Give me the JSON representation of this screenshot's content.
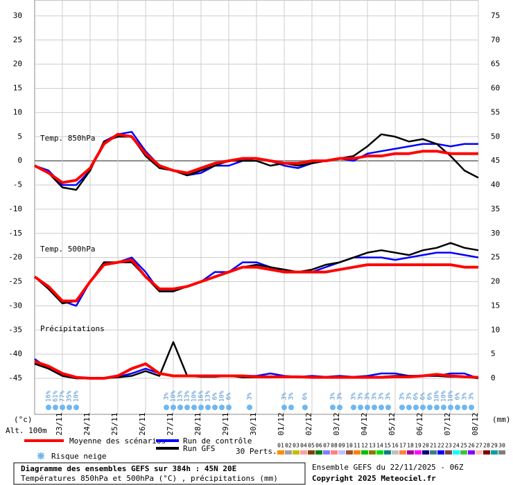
{
  "chart_data": {
    "type": "line",
    "annotations": [
      "Temp. 850hPa",
      "Temp. 500hPa",
      "Précipitations"
    ],
    "y_label": "(°c)",
    "altitude": "Alt. 100m",
    "y2_label": "(mm)",
    "xlim": [
      0,
      384
    ],
    "xticks": [
      {
        "value": 24,
        "label": "23/11"
      },
      {
        "value": 48,
        "label": "24/11"
      },
      {
        "value": 72,
        "label": "25/11"
      },
      {
        "value": 96,
        "label": "26/11"
      },
      {
        "value": 120,
        "label": "27/11"
      },
      {
        "value": 144,
        "label": "28/11"
      },
      {
        "value": 168,
        "label": "29/11"
      },
      {
        "value": 192,
        "label": "30/11"
      },
      {
        "value": 216,
        "label": "01/12"
      },
      {
        "value": 240,
        "label": "02/12"
      },
      {
        "value": 264,
        "label": "03/12"
      },
      {
        "value": 288,
        "label": "04/12"
      },
      {
        "value": 312,
        "label": "05/12"
      },
      {
        "value": 336,
        "label": "06/12"
      },
      {
        "value": 360,
        "label": "07/12"
      },
      {
        "value": 384,
        "label": "08/12"
      }
    ],
    "ylim": [
      -45,
      33
    ],
    "yticks": [
      -45,
      -40,
      -35,
      -30,
      -25,
      -20,
      -15,
      -10,
      -5,
      0,
      5,
      10,
      15,
      20,
      25,
      30
    ],
    "y2lim": [
      0,
      78
    ],
    "y2ticks": [
      0,
      5,
      10,
      15,
      20,
      25,
      30,
      35,
      40,
      45,
      50,
      55,
      60,
      65,
      70,
      75
    ],
    "x": [
      0,
      12,
      24,
      36,
      48,
      60,
      72,
      84,
      96,
      108,
      120,
      132,
      144,
      156,
      168,
      180,
      192,
      204,
      216,
      228,
      240,
      252,
      264,
      276,
      288,
      300,
      312,
      324,
      336,
      348,
      360,
      372,
      384
    ],
    "series": [
      {
        "name": "Run de contrôle",
        "color": "#0000ff",
        "t850": [
          -1,
          -2,
          -5,
          -5,
          -2,
          4,
          5.5,
          6,
          2,
          -1,
          -2,
          -3,
          -2.5,
          -1,
          -1,
          0,
          0.5,
          0,
          -1,
          -1.5,
          -0.5,
          0,
          0.5,
          0,
          1.5,
          2,
          2.5,
          3,
          3.5,
          3.5,
          3,
          3.5,
          3.5
        ],
        "t500": [
          -24,
          -26,
          -29,
          -30,
          -25,
          -21,
          -21,
          -20,
          -23,
          -27,
          -27,
          -26,
          -25,
          -23,
          -23,
          -21,
          -21,
          -22,
          -23,
          -23,
          -23,
          -22,
          -21,
          -20,
          -20,
          -20,
          -20.5,
          -20,
          -19.5,
          -19,
          -19,
          -19.5,
          -20
        ],
        "precip": [
          4,
          2,
          0.5,
          0,
          0,
          0,
          0.3,
          1,
          2,
          1,
          0.5,
          0.5,
          0.5,
          0.5,
          0.5,
          0.5,
          0.5,
          1,
          0.5,
          0.3,
          0.5,
          0.3,
          0.5,
          0.3,
          0.5,
          1,
          1,
          0.5,
          0.5,
          0.5,
          1,
          1,
          0
        ]
      },
      {
        "name": "Run GFS",
        "color": "#000000",
        "t850": [
          -1,
          -2.5,
          -5.5,
          -6,
          -2,
          4,
          5,
          5,
          1,
          -1.5,
          -2,
          -3,
          -2,
          -1,
          0,
          0,
          0,
          -1,
          -0.5,
          -1,
          -0.5,
          0,
          0.5,
          1,
          3,
          5.5,
          5,
          4,
          4.5,
          3.5,
          1,
          -2,
          -3.5
        ],
        "t500": [
          -24,
          -26.5,
          -29.5,
          -29,
          -25,
          -21,
          -21,
          -21,
          -24,
          -27,
          -27,
          -26,
          -25,
          -24,
          -23,
          -22,
          -21.5,
          -22,
          -22.5,
          -23,
          -22.5,
          -21.5,
          -21,
          -20,
          -19,
          -18.5,
          -19,
          -19.5,
          -18.5,
          -18,
          -17,
          -18,
          -18.5
        ],
        "precip": [
          3,
          2,
          0.5,
          0,
          0,
          0,
          0.2,
          0.5,
          1.5,
          0.5,
          7.5,
          0.5,
          0.3,
          0.3,
          0.5,
          0.2,
          0.2,
          0.2,
          0.3,
          0.2,
          0.2,
          0.2,
          0.2,
          0.2,
          0.3,
          0.3,
          0.5,
          0.5,
          0.5,
          0.5,
          0.3,
          0.3,
          0
        ]
      },
      {
        "name": "Moyenne des scénarios",
        "color": "#ff0000",
        "t850": [
          -1,
          -2.5,
          -4.5,
          -4,
          -1.5,
          3.5,
          5.5,
          5,
          1.5,
          -1,
          -2,
          -2.5,
          -1.5,
          -0.5,
          0,
          0.5,
          0.5,
          0,
          -0.5,
          -0.5,
          0,
          0,
          0.5,
          0.5,
          1,
          1,
          1.5,
          1.5,
          2,
          2,
          1.5,
          1.5,
          1.5
        ],
        "t500": [
          -24,
          -26,
          -29,
          -29,
          -25,
          -21.5,
          -21,
          -20.5,
          -24,
          -26.5,
          -26.5,
          -26,
          -25,
          -24,
          -23,
          -22,
          -22,
          -22.5,
          -23,
          -23,
          -23,
          -23,
          -22.5,
          -22,
          -21.5,
          -21.5,
          -21.5,
          -21.5,
          -21.5,
          -21.5,
          -21.5,
          -22,
          -22
        ],
        "precip": [
          3.5,
          2.5,
          1,
          0.2,
          0,
          0,
          0.5,
          2,
          3,
          1,
          0.5,
          0.5,
          0.5,
          0.5,
          0.5,
          0.5,
          0.3,
          0.3,
          0.3,
          0.3,
          0.2,
          0.2,
          0.2,
          0.2,
          0.2,
          0.2,
          0.3,
          0.3,
          0.5,
          0.8,
          0.5,
          0.3,
          0.2
        ]
      }
    ],
    "snow_risk": {
      "name": "Risque neige",
      "color": "#6fb7f0",
      "x": [
        12,
        18,
        24,
        30,
        36,
        114,
        120,
        126,
        132,
        138,
        144,
        150,
        156,
        162,
        168,
        186,
        216,
        222,
        234,
        258,
        264,
        276,
        282,
        288,
        294,
        300,
        306,
        318,
        324,
        330,
        336,
        342,
        348,
        354,
        360,
        366,
        372,
        378
      ],
      "labels": [
        "16%",
        "61%",
        "77%",
        "35%",
        "10%",
        "3%",
        "10%",
        "13%",
        "13%",
        "10%",
        "16%",
        "13%",
        "6%",
        "10%",
        "6%",
        "3%",
        "3%",
        "3%",
        "6%",
        "3%",
        "3%",
        "3%",
        "3%",
        "3%",
        "3%",
        "3%",
        "3%",
        "3%",
        "3%",
        "6%",
        "6%",
        "6%",
        "10%",
        "10%",
        "10%",
        "6%",
        "3%",
        "3%"
      ]
    },
    "perturbations": {
      "title": "30 Perts.",
      "names": [
        "01",
        "02",
        "03",
        "04",
        "05",
        "06",
        "07",
        "08",
        "09",
        "10",
        "11",
        "12",
        "13",
        "14",
        "15",
        "16",
        "17",
        "18",
        "19",
        "20",
        "21",
        "22",
        "23",
        "24",
        "25",
        "26",
        "27",
        "28",
        "29",
        "30"
      ],
      "colors": [
        "#ff8c00",
        "#a0a0a0",
        "#c0c000",
        "#ffa0a0",
        "#804000",
        "#008000",
        "#8080ff",
        "#ff8080",
        "#c0c0ff",
        "#a0522d",
        "#ff8000",
        "#00c000",
        "#808000",
        "#00e000",
        "#008080",
        "#c0c0c0",
        "#ff8040",
        "#a000a0",
        "#ff00ff",
        "#000080",
        "#408080",
        "#0000ff",
        "#804040",
        "#00ffff",
        "#40c040",
        "#8000ff",
        "#ffc0c0",
        "#800000",
        "#00a0a0",
        "#808080"
      ]
    },
    "footer": {
      "title": "Diagramme des ensembles GEFS sur 384h : 45N 20E",
      "subtitle": "Températures 850hPa et 500hPa (°C) , précipitations (mm)",
      "run": "Ensemble GEFS du 22/11/2025 - 06Z",
      "copyright": "Copyright 2025 Meteociel.fr"
    }
  }
}
